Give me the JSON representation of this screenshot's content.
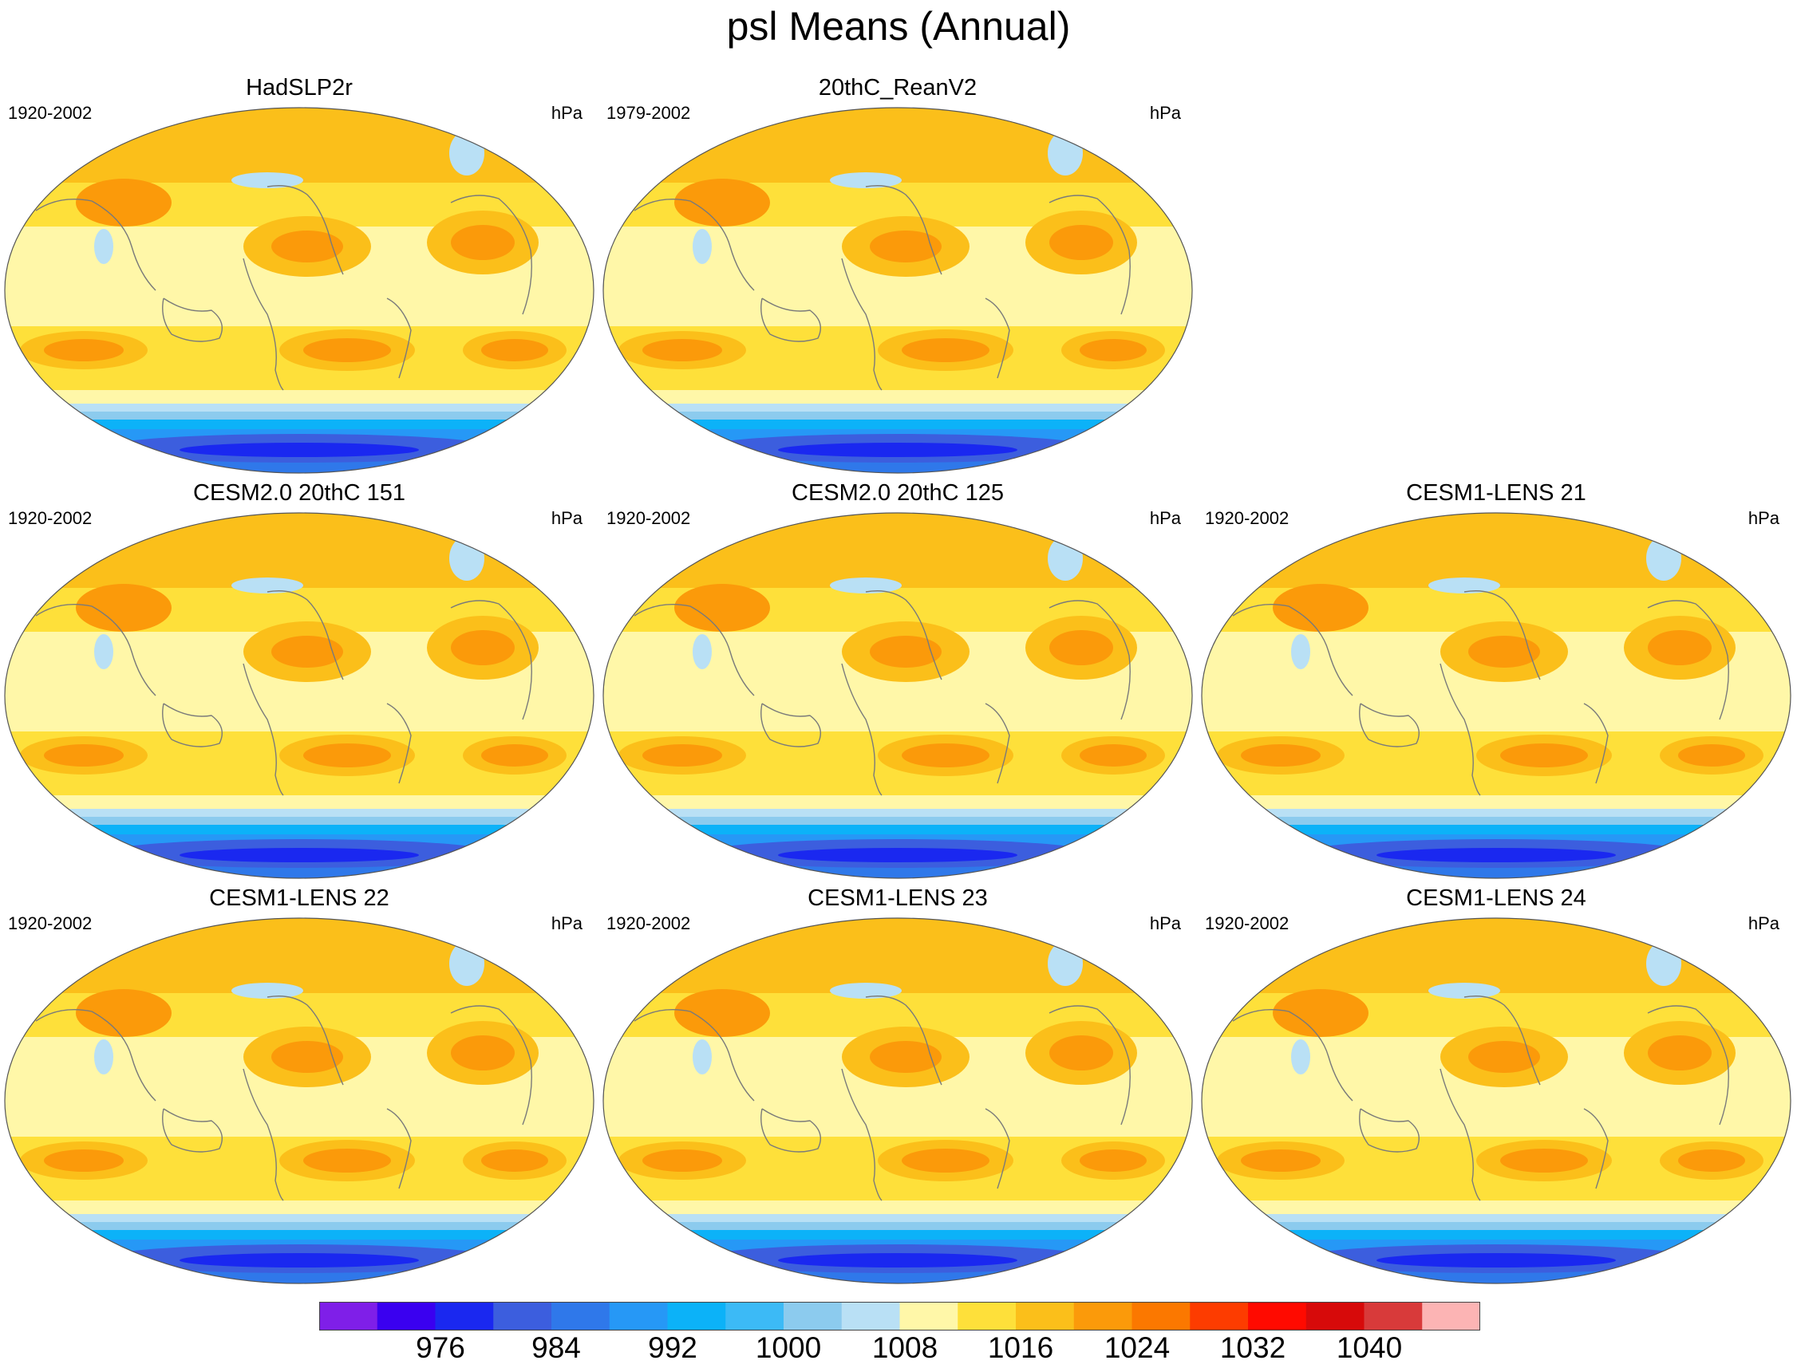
{
  "title": "psl Means (Annual)",
  "colors": {
    "levels": [
      "#7f1fe8",
      "#3a00f0",
      "#1a28f0",
      "#3c5ede",
      "#2f78ea",
      "#2698f6",
      "#0cb2f8",
      "#3cbaf6",
      "#8ccbee",
      "#b9e0f5",
      "#fff7a8",
      "#fee03a",
      "#fbbf1a",
      "#fb9a0a",
      "#fb7800",
      "#fd3c00",
      "#ff0a00",
      "#d70a0a",
      "#d83a3a",
      "#fcb4b4"
    ],
    "coast": "#7a7a7a",
    "outline": "#555555"
  },
  "panels": [
    {
      "title": "HadSLP2r",
      "period": "1920-2002",
      "units": "hPa"
    },
    {
      "title": "20thC_ReanV2",
      "period": "1979-2002",
      "units": "hPa"
    },
    {
      "title": "CESM2.0 20thC 151",
      "period": "1920-2002",
      "units": "hPa"
    },
    {
      "title": "CESM2.0 20thC 125",
      "period": "1920-2002",
      "units": "hPa"
    },
    {
      "title": "CESM1-LENS 21",
      "period": "1920-2002",
      "units": "hPa"
    },
    {
      "title": "CESM1-LENS 22",
      "period": "1920-2002",
      "units": "hPa"
    },
    {
      "title": "CESM1-LENS 23",
      "period": "1920-2002",
      "units": "hPa"
    },
    {
      "title": "CESM1-LENS 24",
      "period": "1920-2002",
      "units": "hPa"
    }
  ],
  "colorbar": {
    "labels": [
      "976",
      "984",
      "992",
      "1000",
      "1008",
      "1016",
      "1024",
      "1032",
      "1040"
    ]
  }
}
